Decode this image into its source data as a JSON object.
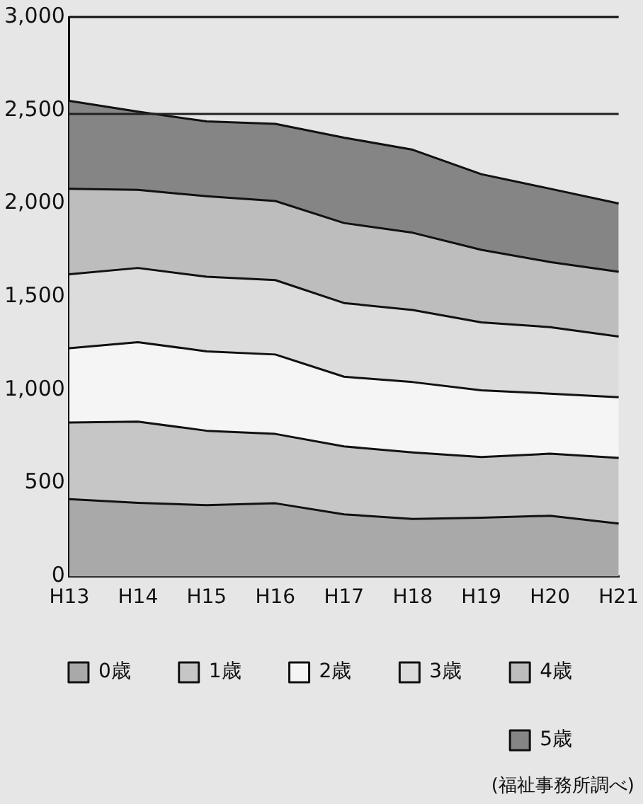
{
  "chart_data": {
    "type": "area",
    "stacked": true,
    "categories": [
      "H13",
      "H14",
      "H15",
      "H16",
      "H17",
      "H18",
      "H19",
      "H20",
      "H21"
    ],
    "series": [
      {
        "name": "0歳",
        "color": "#a9a9a9",
        "values": [
          414,
          394,
          382,
          392,
          333,
          308,
          315,
          325,
          283
        ]
      },
      {
        "name": "1歳",
        "color": "#c6c6c6",
        "values": [
          411,
          436,
          399,
          372,
          364,
          357,
          325,
          333,
          352
        ]
      },
      {
        "name": "2歳",
        "color": "#f5f5f5",
        "values": [
          399,
          426,
          426,
          426,
          374,
          377,
          358,
          322,
          326
        ]
      },
      {
        "name": "3歳",
        "color": "#dcdcdc",
        "values": [
          396,
          398,
          400,
          399,
          395,
          387,
          364,
          357,
          325
        ]
      },
      {
        "name": "4歳",
        "color": "#bdbdbd",
        "values": [
          459,
          419,
          432,
          424,
          429,
          414,
          389,
          349,
          348
        ]
      },
      {
        "name": "5歳",
        "color": "#858585",
        "values": [
          471,
          419,
          401,
          414,
          458,
          445,
          406,
          393,
          366
        ]
      }
    ],
    "ylim": [
      0,
      3000
    ],
    "yticks": [
      {
        "value": 0,
        "label": "0"
      },
      {
        "value": 500,
        "label": "500"
      },
      {
        "value": 1000,
        "label": "1,000"
      },
      {
        "value": 1500,
        "label": "1,500"
      },
      {
        "value": 2000,
        "label": "2,000"
      },
      {
        "value": 2500,
        "label": "2,500"
      },
      {
        "value": 3000,
        "label": "3,000"
      }
    ],
    "ref_lines": [
      {
        "axis": "y",
        "value": 2480,
        "label": null,
        "color": "#222222"
      }
    ],
    "grid": false,
    "legend": "bottom right",
    "line_style": "solid",
    "marker": "none",
    "annotations": [
      "(福祉事務所調べ)"
    ]
  }
}
